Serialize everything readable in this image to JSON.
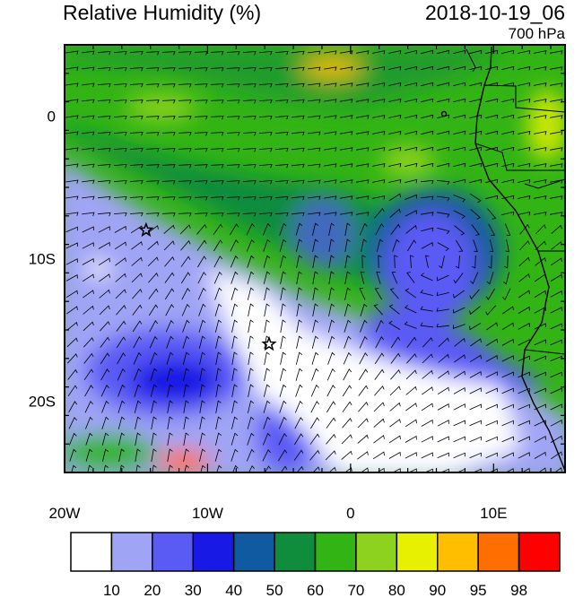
{
  "header": {
    "title": "Relative Humidity (%)",
    "valid_time": "2018-10-19_06",
    "level": "700 hPa"
  },
  "map": {
    "projection": "lat-lon",
    "extent": {
      "lon": [
        -20,
        15
      ],
      "lat": [
        -25,
        5
      ]
    },
    "x_ticks": [
      {
        "value": -20,
        "label": "20W"
      },
      {
        "value": -10,
        "label": "10W"
      },
      {
        "value": 0,
        "label": "0"
      },
      {
        "value": 10,
        "label": "10E"
      }
    ],
    "y_ticks": [
      {
        "value": 0,
        "label": "0"
      },
      {
        "value": -10,
        "label": "10S"
      },
      {
        "value": -20,
        "label": "20S"
      }
    ],
    "overlays": [
      "wind-barbs",
      "coastline",
      "country-borders"
    ],
    "star_markers": [
      {
        "lon": -14.3,
        "lat": -8.0
      },
      {
        "lon": -5.7,
        "lat": -16.0
      }
    ]
  },
  "colorbar": {
    "bins": [
      {
        "color": "#ffffff",
        "label": "10"
      },
      {
        "color": "#a0a4f5",
        "label": "20"
      },
      {
        "color": "#5a5af5",
        "label": "30"
      },
      {
        "color": "#1919e6",
        "label": "40"
      },
      {
        "color": "#0f5aa0",
        "label": "50"
      },
      {
        "color": "#0f8c3c",
        "label": "60"
      },
      {
        "color": "#32b414",
        "label": "70"
      },
      {
        "color": "#8cd21e",
        "label": "80"
      },
      {
        "color": "#e6f000",
        "label": "90"
      },
      {
        "color": "#ffbe00",
        "label": "95"
      },
      {
        "color": "#ff6e00",
        "label": "98"
      },
      {
        "color": "#ff0000",
        "label": ""
      }
    ]
  }
}
